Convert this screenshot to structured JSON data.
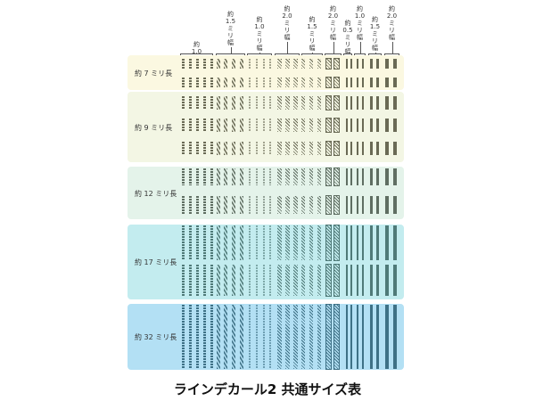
{
  "title": "ラインデカール2 共通サイズ表",
  "width_headers": [
    {
      "label": "約1.0ミリ幅",
      "lines": [
        "約",
        "1.0",
        "ミ",
        "リ",
        "幅"
      ]
    },
    {
      "label": "約1.5ミリ幅",
      "lines": [
        "約",
        "1.5",
        "ミ",
        "リ",
        "幅"
      ]
    },
    {
      "label": "約1.0ミリ幅",
      "lines": [
        "約",
        "1.0",
        "ミ",
        "リ",
        "幅"
      ]
    },
    {
      "label": "約2.0ミリ幅",
      "lines": [
        "約",
        "2.0",
        "ミ",
        "リ",
        "幅"
      ]
    },
    {
      "label": "約1.5ミリ幅",
      "lines": [
        "約",
        "1.5",
        "ミ",
        "リ",
        "幅"
      ]
    },
    {
      "label": "約2.0ミリ幅",
      "lines": [
        "約",
        "2.0",
        "ミ",
        "リ",
        "幅"
      ]
    },
    {
      "label": "約0.5ミリ幅",
      "lines": [
        "約",
        "0.5",
        "ミ",
        "リ",
        "幅"
      ]
    },
    {
      "label": "約1.0ミリ幅",
      "lines": [
        "約",
        "1.0",
        "ミ",
        "リ",
        "幅"
      ]
    },
    {
      "label": "約1.5ミリ幅",
      "lines": [
        "約",
        "1.5",
        "ミ",
        "リ",
        "幅"
      ]
    },
    {
      "label": "約2.0ミリ幅",
      "lines": [
        "約",
        "2.0",
        "ミ",
        "リ",
        "幅"
      ]
    }
  ],
  "length_bands": [
    {
      "label": "約 7 ミリ長",
      "rows": 2,
      "bg": "#fbf8e1",
      "ink": "#6a6a55"
    },
    {
      "label": "約 9 ミリ長",
      "rows": 3,
      "bg": "#f3f6e4",
      "ink": "#6a6a55"
    },
    {
      "label": "約 12 ミリ長",
      "rows": 2,
      "bg": "#e4f3ea",
      "ink": "#5f6e62"
    },
    {
      "label": "約 17 ミリ長",
      "rows": 2,
      "bg": "#c3ecef",
      "ink": "#4f7a78"
    },
    {
      "label": "約 32 ミリ長",
      "rows": 1,
      "bg": "#b3e0f4",
      "ink": "#3e7186"
    }
  ]
}
